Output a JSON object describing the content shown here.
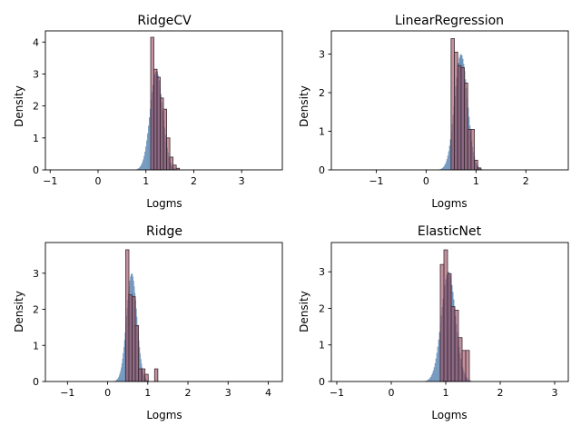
{
  "colors": {
    "predicted": "#4f7cab",
    "actual_fill": "#9c4a5e",
    "actual_edge": "#3a2a30"
  },
  "chart_data": [
    {
      "type": "histogram",
      "title": "RidgeCV",
      "xlabel": "Logms",
      "ylabel": "Density",
      "xlim": [
        -1.1,
        3.85
      ],
      "ylim": [
        0,
        4.35
      ],
      "xticks": [
        -1,
        0,
        1,
        2,
        3
      ],
      "yticks": [
        0,
        1,
        2,
        3,
        4
      ],
      "grid": false,
      "predicted": {
        "mean": 1.22,
        "sd": 0.13,
        "peak": 3.1,
        "range": [
          0.6,
          1.9
        ]
      },
      "actual_bins": {
        "start": 1.1,
        "width": 0.0667,
        "values": [
          4.15,
          3.15,
          2.9,
          2.25,
          1.9,
          1.0,
          0.4,
          0.15,
          0.05
        ]
      }
    },
    {
      "type": "histogram",
      "title": "LinearRegression",
      "xlabel": "Logms",
      "ylabel": "Density",
      "xlim": [
        -1.9,
        2.85
      ],
      "ylim": [
        0,
        3.6
      ],
      "xticks": [
        -1,
        0,
        1,
        2
      ],
      "yticks": [
        0,
        1,
        2,
        3
      ],
      "grid": false,
      "predicted": {
        "mean": 0.7,
        "sd": 0.13,
        "peak": 3.0,
        "range": [
          0.05,
          1.3
        ]
      },
      "actual_bins": {
        "start": 0.5,
        "width": 0.0667,
        "values": [
          3.4,
          3.05,
          2.7,
          2.65,
          2.25,
          1.05,
          1.05,
          0.25,
          0.05
        ]
      }
    },
    {
      "type": "histogram",
      "title": "Ridge",
      "xlabel": "Logms",
      "ylabel": "Density",
      "xlim": [
        -1.55,
        4.35
      ],
      "ylim": [
        0,
        3.85
      ],
      "xticks": [
        -1,
        0,
        1,
        2,
        3,
        4
      ],
      "yticks": [
        0,
        1,
        2,
        3
      ],
      "grid": false,
      "predicted": {
        "mean": 0.6,
        "sd": 0.13,
        "peak": 3.0,
        "range": [
          0.05,
          1.2
        ]
      },
      "actual_bins": {
        "start": 0.45,
        "width": 0.08,
        "values": [
          3.65,
          2.4,
          2.35,
          1.55,
          0.35,
          0.35,
          0.2,
          0,
          0,
          0.35
        ]
      }
    },
    {
      "type": "histogram",
      "title": "ElasticNet",
      "xlabel": "Logms",
      "ylabel": "Density",
      "xlim": [
        -1.1,
        3.25
      ],
      "ylim": [
        0,
        3.8
      ],
      "xticks": [
        -1,
        0,
        1,
        2,
        3
      ],
      "yticks": [
        0,
        1,
        2,
        3
      ],
      "grid": false,
      "predicted": {
        "mean": 1.05,
        "sd": 0.13,
        "peak": 3.0,
        "range": [
          0.5,
          1.65
        ]
      },
      "actual_bins": {
        "start": 0.9,
        "width": 0.0667,
        "values": [
          3.2,
          3.6,
          2.95,
          2.05,
          1.95,
          1.2,
          0.85,
          0.85
        ]
      }
    }
  ]
}
